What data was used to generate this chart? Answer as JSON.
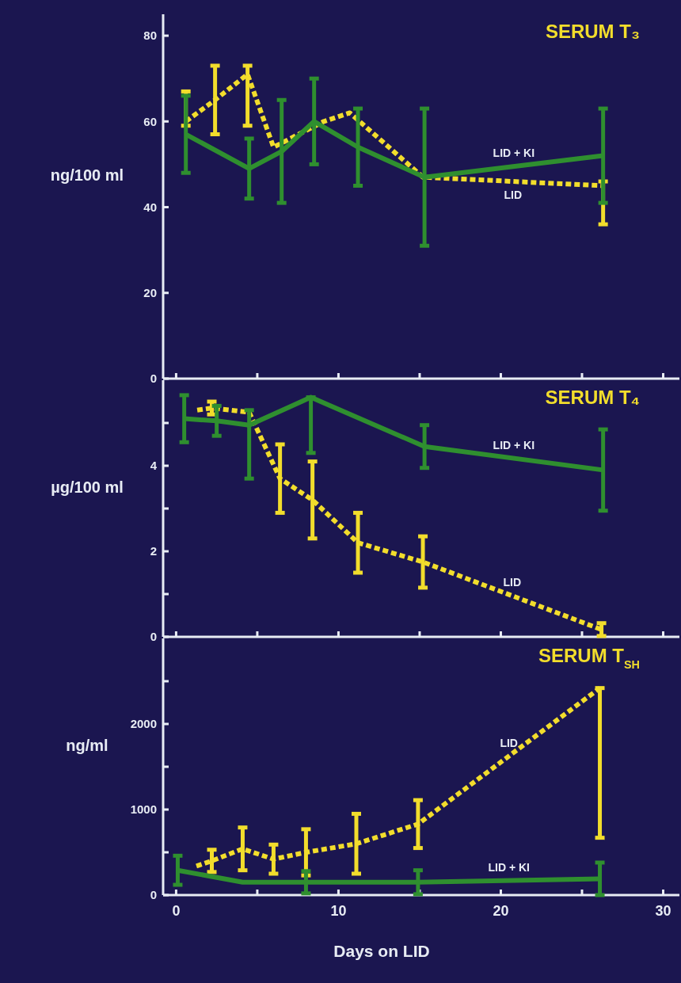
{
  "chart_data": [
    {
      "type": "line",
      "title": "SERUM T₃",
      "ylabel": "ng/100 ml",
      "xlim": [
        -0.8,
        31
      ],
      "xticks": [
        0,
        {
          "value": 5,
          "label": null
        },
        {
          "value": 10,
          "label": null
        },
        {
          "value": 15,
          "label": null
        },
        {
          "value": 20,
          "label": null
        },
        {
          "value": 25,
          "label": null
        },
        {
          "value": 30,
          "label": null
        }
      ],
      "ylim": [
        0,
        85
      ],
      "yticks": [
        0,
        20,
        40,
        60,
        80
      ],
      "tick_labels": "y",
      "series": [
        {
          "name": "LID",
          "color": "#f2dd2c",
          "line_style": "dashed",
          "x": [
            0.6,
            2.4,
            4.4,
            6.0,
            9.1,
            10.7,
            15.2,
            26.3
          ],
          "values": [
            60,
            65,
            71,
            54,
            60,
            62,
            47,
            45
          ],
          "errors": [
            [
              59,
              67
            ],
            8,
            [
              59,
              73
            ],
            null,
            null,
            null,
            null,
            [
              36,
              46
            ]
          ]
        },
        {
          "name": "LID + KI",
          "color": "#2f8f2f",
          "line_style": "solid",
          "x": [
            0.6,
            4.5,
            6.5,
            8.5,
            11.2,
            15.3,
            26.3
          ],
          "values": [
            57,
            49,
            53,
            60,
            54,
            47,
            52
          ],
          "errors": [
            9,
            7,
            12,
            10,
            9,
            16,
            11
          ]
        }
      ]
    },
    {
      "type": "line",
      "title": "SERUM T₄",
      "ylabel": "µg/100 ml",
      "xlim": [
        -0.8,
        31
      ],
      "xticks": [
        0,
        {
          "value": 5,
          "label": null
        },
        {
          "value": 10,
          "label": null
        },
        {
          "value": 15,
          "label": null
        },
        {
          "value": 20,
          "label": null
        },
        {
          "value": 25,
          "label": null
        },
        {
          "value": 30,
          "label": null
        }
      ],
      "ylim": [
        0,
        6
      ],
      "yticks": [
        0,
        {
          "value": 1,
          "label": null
        },
        2,
        {
          "value": 3,
          "label": null
        },
        4,
        {
          "value": 5,
          "label": null
        }
      ],
      "tick_labels": "y",
      "series": [
        {
          "name": "LID",
          "color": "#f2dd2c",
          "line_style": "dashed",
          "x": [
            1.3,
            2.2,
            4.5,
            6.4,
            8.4,
            11.2,
            15.2,
            26.2
          ],
          "values": [
            5.3,
            5.35,
            5.25,
            3.7,
            3.2,
            2.2,
            1.75,
            0.17
          ],
          "errors": [
            null,
            0.15,
            null,
            0.8,
            0.9,
            0.7,
            0.6,
            0.15
          ]
        },
        {
          "name": "LID + KI",
          "color": "#2f8f2f",
          "line_style": "solid",
          "x": [
            0.5,
            2.5,
            4.5,
            8.3,
            15.3,
            26.3
          ],
          "values": [
            5.1,
            5.05,
            4.95,
            5.6,
            4.45,
            3.9
          ],
          "errors": [
            0.55,
            0.35,
            [
              3.7,
              5.3
            ],
            [
              4.3,
              5.6
            ],
            0.5,
            0.95
          ]
        }
      ]
    },
    {
      "type": "line",
      "title": "SERUM T$_{SH}$",
      "ylabel": "ng/ml",
      "xlabel": "Days on LID",
      "xlim": [
        -0.8,
        31
      ],
      "xticks": [
        0,
        {
          "value": 5,
          "label": null
        },
        10,
        {
          "value": 15,
          "label": null
        },
        20,
        {
          "value": 25,
          "label": null
        },
        30
      ],
      "ylim": [
        0,
        3000
      ],
      "yticks": [
        0,
        {
          "value": 500,
          "label": null
        },
        1000,
        {
          "value": 1500,
          "label": null
        },
        2000,
        {
          "value": 2500,
          "label": null
        }
      ],
      "series": [
        {
          "name": "LID",
          "color": "#f2dd2c",
          "line_style": "dashed",
          "x": [
            1.25,
            2.2,
            4.1,
            6.0,
            8.0,
            11.1,
            14.9,
            26.1
          ],
          "values": [
            340,
            400,
            540,
            420,
            500,
            600,
            830,
            2420
          ],
          "errors": [
            null,
            130,
            250,
            170,
            270,
            350,
            280,
            [
              670,
              2420
            ]
          ]
        },
        {
          "name": "LID + KI",
          "color": "#2f8f2f",
          "line_style": "solid",
          "x": [
            0.1,
            4.1,
            8.0,
            14.9,
            26.1
          ],
          "values": [
            290,
            150,
            150,
            150,
            190
          ],
          "errors": [
            170,
            null,
            130,
            140,
            190
          ]
        }
      ]
    }
  ]
}
